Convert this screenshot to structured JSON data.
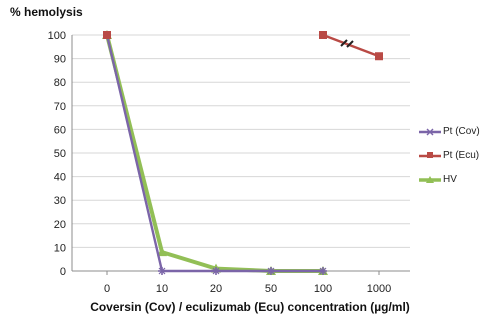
{
  "chart_data": {
    "type": "line",
    "title": "",
    "ylabel": "% hemolysis",
    "xlabel": "Coversin (Cov) / eculizumab (Ecu) concentration (µg/ml)",
    "categories": [
      "0",
      "10",
      "20",
      "50",
      "100",
      "1000"
    ],
    "ylim": [
      0,
      100
    ],
    "yticks": [
      0,
      10,
      20,
      30,
      40,
      50,
      60,
      70,
      80,
      90,
      100
    ],
    "grid": true,
    "legend_position": "right",
    "axis_break_between": [
      "100",
      "1000"
    ],
    "series": [
      {
        "name": "Pt (Cov)",
        "color": "#7b65a8",
        "marker": "star",
        "values": [
          100,
          0,
          0,
          0,
          0,
          null
        ]
      },
      {
        "name": "Pt (Ecu)",
        "color": "#b94a45",
        "marker": "square",
        "values": [
          100,
          null,
          null,
          null,
          100,
          91
        ]
      },
      {
        "name": "HV",
        "color": "#92bf56",
        "marker": "triangle",
        "values": [
          100,
          8,
          1,
          0,
          0,
          null
        ]
      }
    ]
  }
}
